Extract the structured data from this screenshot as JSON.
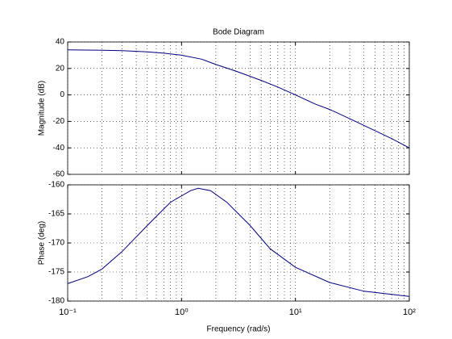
{
  "chart_data": [
    {
      "type": "line",
      "title": "Bode Diagram",
      "ylabel": "Magnitude (dB)",
      "x": [
        0.1,
        0.2,
        0.3,
        0.5,
        0.7,
        1,
        1.5,
        2,
        3,
        5,
        7,
        10,
        15,
        20,
        30,
        50,
        70,
        100
      ],
      "series": [
        {
          "name": "Magnitude",
          "color": "#000080",
          "values": [
            34,
            33.7,
            33.5,
            32.5,
            31.5,
            30,
            27,
            23,
            18,
            11,
            6,
            0,
            -7,
            -11,
            -18,
            -27,
            -33,
            -40
          ]
        }
      ],
      "xlim": [
        0.1,
        100
      ],
      "xticks": [
        {
          "value": 0.1,
          "label": "10⁻¹"
        },
        {
          "value": 1,
          "label": "10⁰"
        },
        {
          "value": 10,
          "label": "10¹"
        },
        {
          "value": 100,
          "label": "10²"
        }
      ],
      "xscale": "log",
      "ylim": [
        -60,
        40
      ],
      "yticks": [
        -60,
        -40,
        -20,
        0,
        20,
        40
      ],
      "grid": true
    },
    {
      "type": "line",
      "xlabel": "Frequency  (rad/s)",
      "ylabel": "Phase (deg)",
      "x": [
        0.1,
        0.15,
        0.2,
        0.3,
        0.5,
        0.8,
        1.2,
        1.4,
        1.8,
        2.5,
        4,
        6,
        10,
        20,
        40,
        100
      ],
      "series": [
        {
          "name": "Phase",
          "color": "#000080",
          "values": [
            -177,
            -175.8,
            -174.5,
            -171.5,
            -167,
            -163,
            -161,
            -160.6,
            -161,
            -163,
            -167,
            -171,
            -174.2,
            -176.8,
            -178.3,
            -179.2
          ]
        }
      ],
      "xlim": [
        0.1,
        100
      ],
      "xticks": [
        {
          "value": 0.1,
          "label": "10⁻¹"
        },
        {
          "value": 1,
          "label": "10⁰"
        },
        {
          "value": 10,
          "label": "10¹"
        },
        {
          "value": 100,
          "label": "10²"
        }
      ],
      "xscale": "log",
      "ylim": [
        -180,
        -160
      ],
      "yticks": [
        -180,
        -175,
        -170,
        -165,
        -160
      ],
      "grid": true
    }
  ]
}
